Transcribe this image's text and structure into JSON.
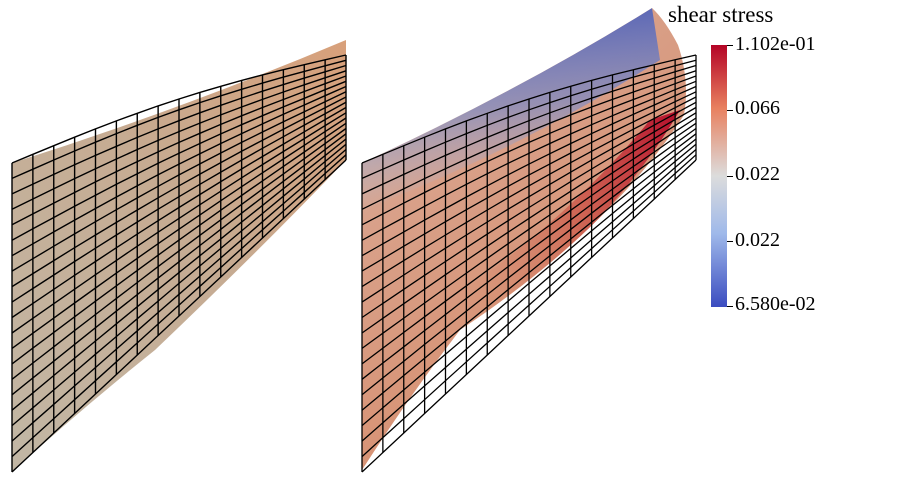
{
  "legend": {
    "title": "shear stress",
    "labels": [
      "1.102e-01",
      "0.066",
      "0.022",
      "0.022",
      "6.580e-02"
    ],
    "colors": {
      "high": "#b40426",
      "mid": "#dcdcdc",
      "low": "#3b4cc0"
    }
  }
}
